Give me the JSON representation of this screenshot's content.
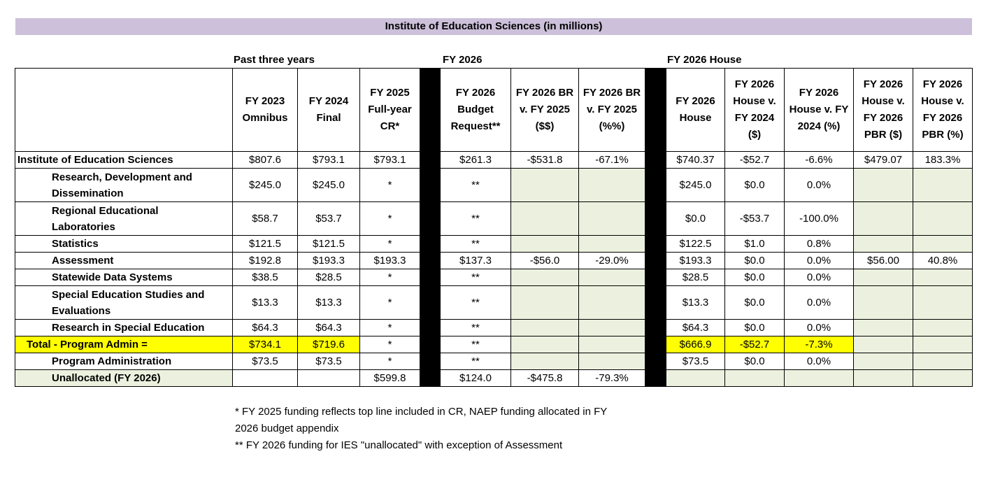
{
  "title": "Institute of Education Sciences (in millions)",
  "groups": {
    "past": "Past three years",
    "fy2026": "FY 2026",
    "house": "FY 2026 House"
  },
  "headers": {
    "fy2023": [
      "FY 2023",
      "Omnibus"
    ],
    "fy2024": [
      "FY 2024",
      "Final"
    ],
    "fy2025": [
      "FY 2025",
      "Full-year",
      "CR*"
    ],
    "br": [
      "FY 2026",
      "Budget",
      "Request**"
    ],
    "br_v_d": [
      "FY 2026 BR",
      "v. FY 2025",
      "($$)"
    ],
    "br_v_p": [
      "FY 2026 BR",
      "v. FY 2025",
      "(%%)"
    ],
    "house": [
      "FY 2026",
      "House"
    ],
    "house_v24_d": [
      "FY 2026",
      "House  v.",
      "FY 2024",
      "($)"
    ],
    "house_v24_p": [
      "FY 2026",
      "House v. FY",
      "2024 (%)"
    ],
    "house_vpbr_d": [
      "FY 2026",
      "House v.",
      "FY 2026",
      "PBR ($)"
    ],
    "house_vpbr_p": [
      "FY 2026",
      "House v.",
      "FY 2026",
      "PBR (%)"
    ]
  },
  "rows": [
    {
      "label": [
        "Institute of Education Sciences"
      ],
      "fy2023": "$807.6",
      "fy2024": "$793.1",
      "fy2025": "$793.1",
      "br": "$261.3",
      "br_v_d": "-$531.8",
      "br_v_p": "-67.1%",
      "house": "$740.37",
      "hv24_d": "-$52.7",
      "hv24_p": "-6.6%",
      "hvpbr_d": "$479.07",
      "hvpbr_p": "183.3%"
    },
    {
      "label": [
        "Research, Development and",
        "Dissemination"
      ],
      "fy2023": "$245.0",
      "fy2024": "$245.0",
      "fy2025": "*",
      "br": "**",
      "br_v_d": "",
      "br_v_p": "",
      "house": "$245.0",
      "hv24_d": "$0.0",
      "hv24_p": "0.0%",
      "hvpbr_d": "",
      "hvpbr_p": ""
    },
    {
      "label": [
        "Regional Educational",
        "Laboratories"
      ],
      "fy2023": "$58.7",
      "fy2024": "$53.7",
      "fy2025": "*",
      "br": "**",
      "br_v_d": "",
      "br_v_p": "",
      "house": "$0.0",
      "hv24_d": "-$53.7",
      "hv24_p": "-100.0%",
      "hvpbr_d": "",
      "hvpbr_p": ""
    },
    {
      "label": [
        "Statistics"
      ],
      "fy2023": "$121.5",
      "fy2024": "$121.5",
      "fy2025": "*",
      "br": "**",
      "br_v_d": "",
      "br_v_p": "",
      "house": "$122.5",
      "hv24_d": "$1.0",
      "hv24_p": "0.8%",
      "hvpbr_d": "",
      "hvpbr_p": ""
    },
    {
      "label": [
        "Assessment"
      ],
      "fy2023": "$192.8",
      "fy2024": "$193.3",
      "fy2025": "$193.3",
      "br": "$137.3",
      "br_v_d": "-$56.0",
      "br_v_p": "-29.0%",
      "house": "$193.3",
      "hv24_d": "$0.0",
      "hv24_p": "0.0%",
      "hvpbr_d": "$56.00",
      "hvpbr_p": "40.8%"
    },
    {
      "label": [
        "Statewide Data Systems"
      ],
      "fy2023": "$38.5",
      "fy2024": "$28.5",
      "fy2025": "*",
      "br": "**",
      "br_v_d": "",
      "br_v_p": "",
      "house": "$28.5",
      "hv24_d": "$0.0",
      "hv24_p": "0.0%",
      "hvpbr_d": "",
      "hvpbr_p": ""
    },
    {
      "label": [
        "Special Education Studies and",
        "Evaluations"
      ],
      "fy2023": "$13.3",
      "fy2024": "$13.3",
      "fy2025": "*",
      "br": "**",
      "br_v_d": "",
      "br_v_p": "",
      "house": "$13.3",
      "hv24_d": "$0.0",
      "hv24_p": "0.0%",
      "hvpbr_d": "",
      "hvpbr_p": ""
    },
    {
      "label": [
        "Research in Special Education"
      ],
      "fy2023": "$64.3",
      "fy2024": "$64.3",
      "fy2025": "*",
      "br": "**",
      "br_v_d": "",
      "br_v_p": "",
      "house": "$64.3",
      "hv24_d": "$0.0",
      "hv24_p": "0.0%",
      "hvpbr_d": "",
      "hvpbr_p": ""
    },
    {
      "label": [
        "Total - Program Admin ="
      ],
      "fy2023": "$734.1",
      "fy2024": "$719.6",
      "fy2025": "*",
      "br": "**",
      "br_v_d": "",
      "br_v_p": "",
      "house": "$666.9",
      "hv24_d": "-$52.7",
      "hv24_p": "-7.3%",
      "hvpbr_d": "",
      "hvpbr_p": ""
    },
    {
      "label": [
        "Program Administration"
      ],
      "fy2023": "$73.5",
      "fy2024": "$73.5",
      "fy2025": "*",
      "br": "**",
      "br_v_d": "",
      "br_v_p": "",
      "house": "$73.5",
      "hv24_d": "$0.0",
      "hv24_p": "0.0%",
      "hvpbr_d": "",
      "hvpbr_p": ""
    },
    {
      "label": [
        "Unallocated (FY 2026)"
      ],
      "fy2023": "",
      "fy2024": "",
      "fy2025": "$599.8",
      "br": "$124.0",
      "br_v_d": "-$475.8",
      "br_v_p": "-79.3%",
      "house": "",
      "hv24_d": "",
      "hv24_p": "",
      "hvpbr_d": "",
      "hvpbr_p": ""
    }
  ],
  "notes": [
    "* FY 2025 funding reflects top line included in CR, NAEP funding allocated in FY",
    "2026 budget appendix",
    "** FY 2026 funding for IES \"unallocated\" with exception of Assessment"
  ],
  "colors": {
    "title_bar": "#ccc0da",
    "empty_cell": "#ebf1de",
    "highlight": "#ffff00",
    "separator": "#000000"
  }
}
